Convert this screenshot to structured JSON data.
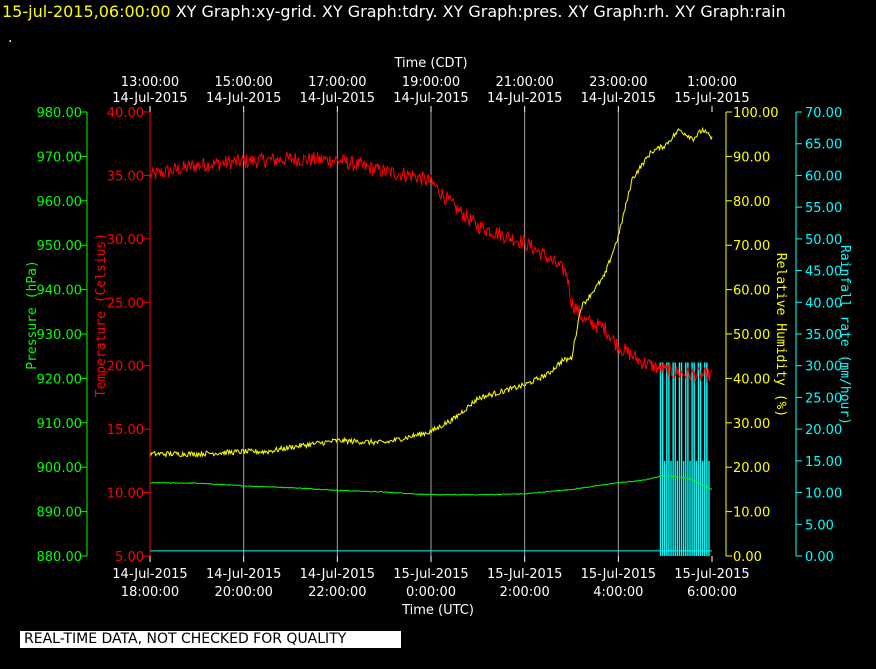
{
  "header": {
    "timestamp": "15-jul-2015,06:00:00",
    "graph_titles": "  XY Graph:xy-grid.  XY Graph:tdry.  XY Graph:pres.  XY Graph:rh.  XY Graph:rain",
    "dot": "."
  },
  "footer": {
    "text": "REAL-TIME DATA, NOT CHECKED FOR QUALITY"
  },
  "chart_data": {
    "type": "line",
    "top_axis": {
      "title": "Time (CDT)",
      "ticks": [
        [
          "13:00:00",
          "14-Jul-2015"
        ],
        [
          "15:00:00",
          "14-Jul-2015"
        ],
        [
          "17:00:00",
          "14-Jul-2015"
        ],
        [
          "19:00:00",
          "14-Jul-2015"
        ],
        [
          "21:00:00",
          "14-Jul-2015"
        ],
        [
          "23:00:00",
          "14-Jul-2015"
        ],
        [
          "1:00:00",
          "15-Jul-2015"
        ]
      ]
    },
    "bottom_axis": {
      "title": "Time (UTC)",
      "ticks": [
        [
          "14-Jul-2015",
          "18:00:00"
        ],
        [
          "14-Jul-2015",
          "20:00:00"
        ],
        [
          "14-Jul-2015",
          "22:00:00"
        ],
        [
          "15-Jul-2015",
          "0:00:00"
        ],
        [
          "15-Jul-2015",
          "2:00:00"
        ],
        [
          "15-Jul-2015",
          "4:00:00"
        ],
        [
          "15-Jul-2015",
          "6:00:00"
        ]
      ]
    },
    "xlim_hours_utc": [
      18,
      30
    ],
    "grid": "vertical",
    "axes": {
      "pressure": {
        "label": "Pressure (hPa)",
        "color": "#00ff00",
        "ylim": [
          880,
          980
        ],
        "step": 10,
        "ticks": [
          "880.00",
          "890.00",
          "900.00",
          "910.00",
          "920.00",
          "930.00",
          "940.00",
          "950.00",
          "960.00",
          "970.00",
          "980.00"
        ]
      },
      "temperature": {
        "label": "Temperature (Celsius)",
        "color": "#ff0000",
        "ylim": [
          5,
          40
        ],
        "step": 5,
        "ticks": [
          "5.00",
          "10.00",
          "15.00",
          "20.00",
          "25.00",
          "30.00",
          "35.00",
          "40.00"
        ]
      },
      "humidity": {
        "label": "Relative Humidity (%)",
        "color": "#ffff00",
        "ylim": [
          0,
          100
        ],
        "step": 10,
        "ticks": [
          "0.00",
          "10.00",
          "20.00",
          "30.00",
          "40.00",
          "50.00",
          "60.00",
          "70.00",
          "80.00",
          "90.00",
          "100.00"
        ]
      },
      "rain": {
        "label": "Rainfall rate (mm/hour)",
        "color": "#00ffff",
        "ylim": [
          0,
          70
        ],
        "step": 5,
        "ticks": [
          "0.00",
          "5.00",
          "10.00",
          "15.00",
          "20.00",
          "25.00",
          "30.00",
          "35.00",
          "40.00",
          "45.00",
          "50.00",
          "55.00",
          "60.00",
          "65.00",
          "70.00"
        ]
      }
    },
    "series": [
      {
        "name": "tdry",
        "axis": "temperature",
        "color": "#ff0000",
        "noise": 0.6,
        "x": [
          18,
          19,
          20,
          21,
          22,
          23,
          23.6,
          24,
          24.5,
          25,
          26,
          26.5,
          26.9,
          27.0,
          27.3,
          27.7,
          28.0,
          28.5,
          29,
          29.5,
          30
        ],
        "y": [
          35.0,
          35.8,
          36.1,
          36.3,
          36.2,
          35.3,
          35.0,
          34.5,
          32.5,
          31.0,
          29.7,
          28.5,
          27.3,
          25.0,
          23.5,
          23.0,
          21.5,
          20.3,
          19.6,
          19.3,
          19.2
        ]
      },
      {
        "name": "pres",
        "axis": "pressure",
        "color": "#00ff00",
        "noise": 0.1,
        "x": [
          18,
          19,
          20,
          21,
          22,
          23,
          24,
          25,
          26,
          27,
          28,
          28.5,
          29,
          29.5,
          30
        ],
        "y": [
          896.5,
          896.4,
          895.8,
          895.4,
          894.8,
          894.4,
          893.8,
          893.8,
          894.0,
          895.0,
          896.5,
          897.0,
          898.2,
          897.5,
          895.0
        ]
      },
      {
        "name": "rh",
        "axis": "humidity",
        "color": "#ffff00",
        "noise": 0.6,
        "x": [
          18,
          19,
          20,
          20.5,
          21,
          22,
          23,
          24,
          24.5,
          25,
          26,
          26.5,
          26.8,
          27.0,
          27.2,
          27.7,
          28.0,
          28.3,
          28.7,
          29,
          29.3,
          29.6,
          29.8,
          30
        ],
        "y": [
          23.0,
          23.0,
          23.5,
          23.5,
          24.5,
          26.0,
          25.5,
          28.0,
          31.0,
          35.5,
          38.5,
          41.0,
          44.0,
          44.5,
          56.0,
          63.0,
          72.0,
          85.0,
          91.0,
          92.5,
          96.0,
          94.0,
          96.0,
          94.0
        ]
      }
    ],
    "rain": {
      "name": "rain",
      "axis": "rain",
      "color": "#00ffff",
      "x_start": 28.9,
      "x_end": 29.95,
      "peak_values": [
        30.5,
        15.0
      ]
    }
  }
}
